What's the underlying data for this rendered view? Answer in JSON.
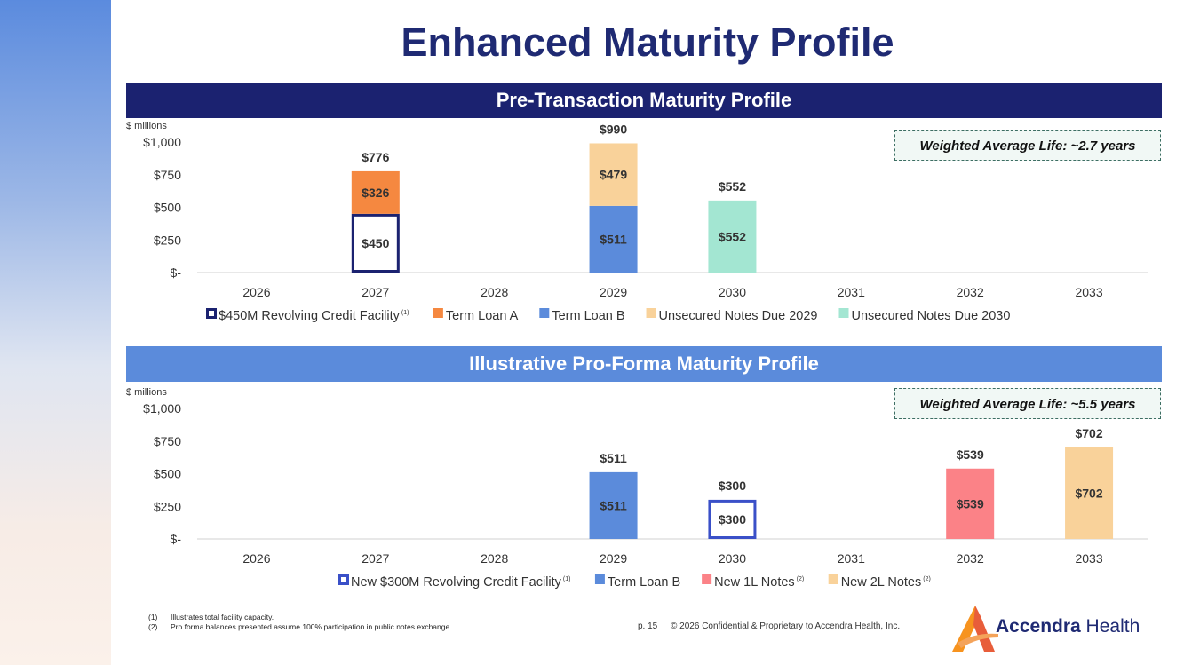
{
  "page": {
    "title": "Enhanced Maturity Profile",
    "footnotes": [
      {
        "num": "(1)",
        "text": "Illustrates total facility capacity."
      },
      {
        "num": "(2)",
        "text": "Pro forma balances presented assume 100% participation in public notes exchange."
      }
    ],
    "page_number": "p. 15",
    "copyright": "© 2026 Confidential & Proprietary to Accendra Health, Inc.",
    "logo": {
      "name_bold": "Accendra",
      "name_light": " Health",
      "colors": [
        "#f7931e",
        "#e85d3a"
      ]
    }
  },
  "chart_data": [
    {
      "type": "bar",
      "stacked": true,
      "title": "Pre-Transaction Maturity Profile",
      "unit_label": "$ millions",
      "note": "Weighted Average Life: ~2.7 years",
      "categories": [
        "2026",
        "2027",
        "2028",
        "2029",
        "2030",
        "2031",
        "2032",
        "2033"
      ],
      "ylim": [
        0,
        1000
      ],
      "yticks": [
        0,
        250,
        500,
        750,
        1000
      ],
      "ytick_labels": [
        "$-",
        "$250",
        "$500",
        "$750",
        "$1,000"
      ],
      "series": [
        {
          "name": "$450M Revolving Credit Facility",
          "footnote": "(1)",
          "color": "#1b2270",
          "style": "outline",
          "values": [
            null,
            450,
            null,
            null,
            null,
            null,
            null,
            null
          ],
          "labels": [
            null,
            "$450",
            null,
            null,
            null,
            null,
            null,
            null
          ]
        },
        {
          "name": "Term Loan A",
          "footnote": "",
          "color": "#f58840",
          "style": "fill",
          "values": [
            null,
            326,
            null,
            null,
            null,
            null,
            null,
            null
          ],
          "labels": [
            null,
            "$326",
            null,
            null,
            null,
            null,
            null,
            null
          ]
        },
        {
          "name": "Term Loan B",
          "footnote": "",
          "color": "#5b8bdb",
          "style": "fill",
          "values": [
            null,
            null,
            null,
            511,
            null,
            null,
            null,
            null
          ],
          "labels": [
            null,
            null,
            null,
            "$511",
            null,
            null,
            null,
            null
          ]
        },
        {
          "name": "Unsecured Notes Due 2029",
          "footnote": "",
          "color": "#f9d29a",
          "style": "fill",
          "values": [
            null,
            null,
            null,
            479,
            null,
            null,
            null,
            null
          ],
          "labels": [
            null,
            null,
            null,
            "$479",
            null,
            null,
            null,
            null
          ]
        },
        {
          "name": "Unsecured Notes Due 2030",
          "footnote": "",
          "color": "#a3e6d2",
          "style": "fill",
          "values": [
            null,
            null,
            null,
            null,
            552,
            null,
            null,
            null
          ],
          "labels": [
            null,
            null,
            null,
            null,
            "$552",
            null,
            null,
            null
          ]
        }
      ],
      "totals": [
        null,
        776,
        null,
        990,
        552,
        null,
        null,
        null
      ],
      "total_labels": [
        null,
        "$776",
        null,
        "$990",
        "$552",
        null,
        null,
        null
      ],
      "legend_position": "bottom"
    },
    {
      "type": "bar",
      "stacked": true,
      "title": "Illustrative Pro-Forma Maturity Profile",
      "unit_label": "$ millions",
      "note": "Weighted Average Life: ~5.5 years",
      "categories": [
        "2026",
        "2027",
        "2028",
        "2029",
        "2030",
        "2031",
        "2032",
        "2033"
      ],
      "ylim": [
        0,
        1000
      ],
      "yticks": [
        0,
        250,
        500,
        750,
        1000
      ],
      "ytick_labels": [
        "$-",
        "$250",
        "$500",
        "$750",
        "$1,000"
      ],
      "series": [
        {
          "name": "New $300M Revolving Credit Facility",
          "footnote": "(1)",
          "color": "#3a50c8",
          "style": "outline",
          "values": [
            null,
            null,
            null,
            null,
            300,
            null,
            null,
            null
          ],
          "labels": [
            null,
            null,
            null,
            null,
            "$300",
            null,
            null,
            null
          ]
        },
        {
          "name": "Term Loan B",
          "footnote": "",
          "color": "#5b8bdb",
          "style": "fill",
          "values": [
            null,
            null,
            null,
            511,
            null,
            null,
            null,
            null
          ],
          "labels": [
            null,
            null,
            null,
            "$511",
            null,
            null,
            null,
            null
          ]
        },
        {
          "name": "New 1L Notes",
          "footnote": "(2)",
          "color": "#fb8287",
          "style": "fill",
          "values": [
            null,
            null,
            null,
            null,
            null,
            null,
            539,
            null
          ],
          "labels": [
            null,
            null,
            null,
            null,
            null,
            null,
            "$539",
            null
          ]
        },
        {
          "name": "New 2L Notes",
          "footnote": "(2)",
          "color": "#f9d29a",
          "style": "fill",
          "values": [
            null,
            null,
            null,
            null,
            null,
            null,
            null,
            702
          ],
          "labels": [
            null,
            null,
            null,
            null,
            null,
            null,
            null,
            "$702"
          ]
        }
      ],
      "totals": [
        null,
        null,
        null,
        511,
        300,
        null,
        539,
        702
      ],
      "total_labels": [
        null,
        null,
        null,
        "$511",
        "$300",
        null,
        "$539",
        "$702"
      ],
      "legend_position": "bottom"
    }
  ]
}
